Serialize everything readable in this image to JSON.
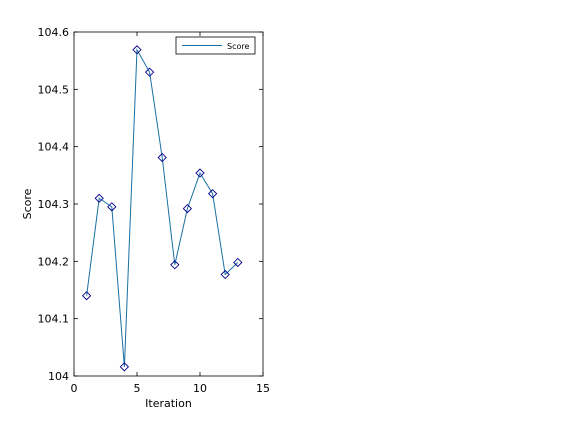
{
  "chart_data": {
    "type": "line",
    "xlabel": "Iteration",
    "ylabel": "Score",
    "xlim": [
      0,
      15
    ],
    "ylim": [
      104.0,
      104.6
    ],
    "xticks": [
      0,
      5,
      10,
      15
    ],
    "yticks": [
      104.0,
      104.1,
      104.2,
      104.3,
      104.4,
      104.5,
      104.6
    ],
    "xtick_labels": [
      "0",
      "5",
      "10",
      "15"
    ],
    "ytick_labels": [
      "104",
      "104.1",
      "104.2",
      "104.3",
      "104.4",
      "104.5",
      "104.6"
    ],
    "grid": false,
    "legend_position": "top-right",
    "series": [
      {
        "name": "Score",
        "line_color": "#1a6fa3",
        "marker": "diamond",
        "marker_color": "#00008b",
        "x": [
          1,
          2,
          3,
          4,
          5,
          6,
          7,
          8,
          9,
          10,
          11,
          12,
          13
        ],
        "y": [
          104.14,
          104.31,
          104.295,
          104.016,
          104.569,
          104.53,
          104.381,
          104.194,
          104.292,
          104.354,
          104.318,
          104.177,
          104.198
        ]
      }
    ]
  }
}
